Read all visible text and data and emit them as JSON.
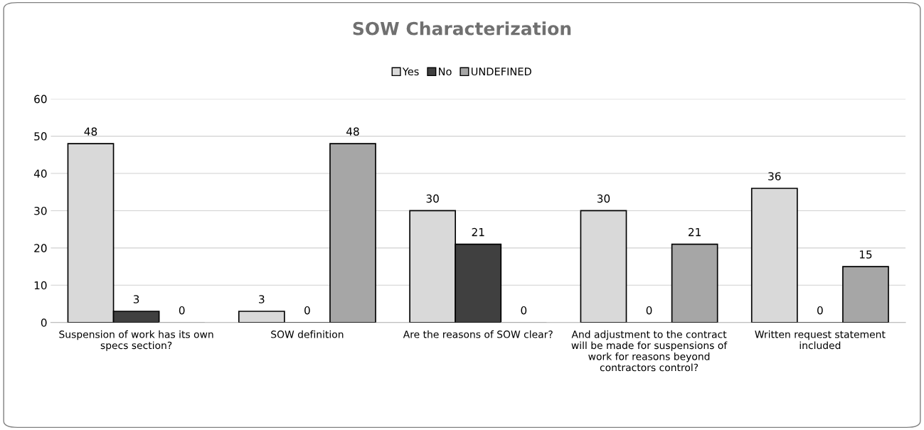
{
  "chart_data": {
    "type": "bar",
    "title": "SOW Characterization",
    "categories": [
      "Suspension of work has its own specs section?",
      "SOW definition",
      "Are the reasons of SOW clear?",
      "And adjustment to the contract will be made for suspensions of work for reasons beyond contractors control?",
      "Written request statement included"
    ],
    "series": [
      {
        "name": "Yes",
        "color": "#d9d9d9",
        "values": [
          48,
          3,
          30,
          30,
          36
        ]
      },
      {
        "name": "No",
        "color": "#404040",
        "values": [
          3,
          0,
          21,
          0,
          0
        ]
      },
      {
        "name": "UNDEFINED",
        "color": "#a6a6a6",
        "values": [
          0,
          48,
          0,
          21,
          15
        ]
      }
    ],
    "ylim": [
      0,
      60
    ],
    "yticks": [
      0,
      10,
      20,
      30,
      40,
      50,
      60
    ],
    "grid": "y",
    "legend": "top",
    "data_labels": true
  }
}
